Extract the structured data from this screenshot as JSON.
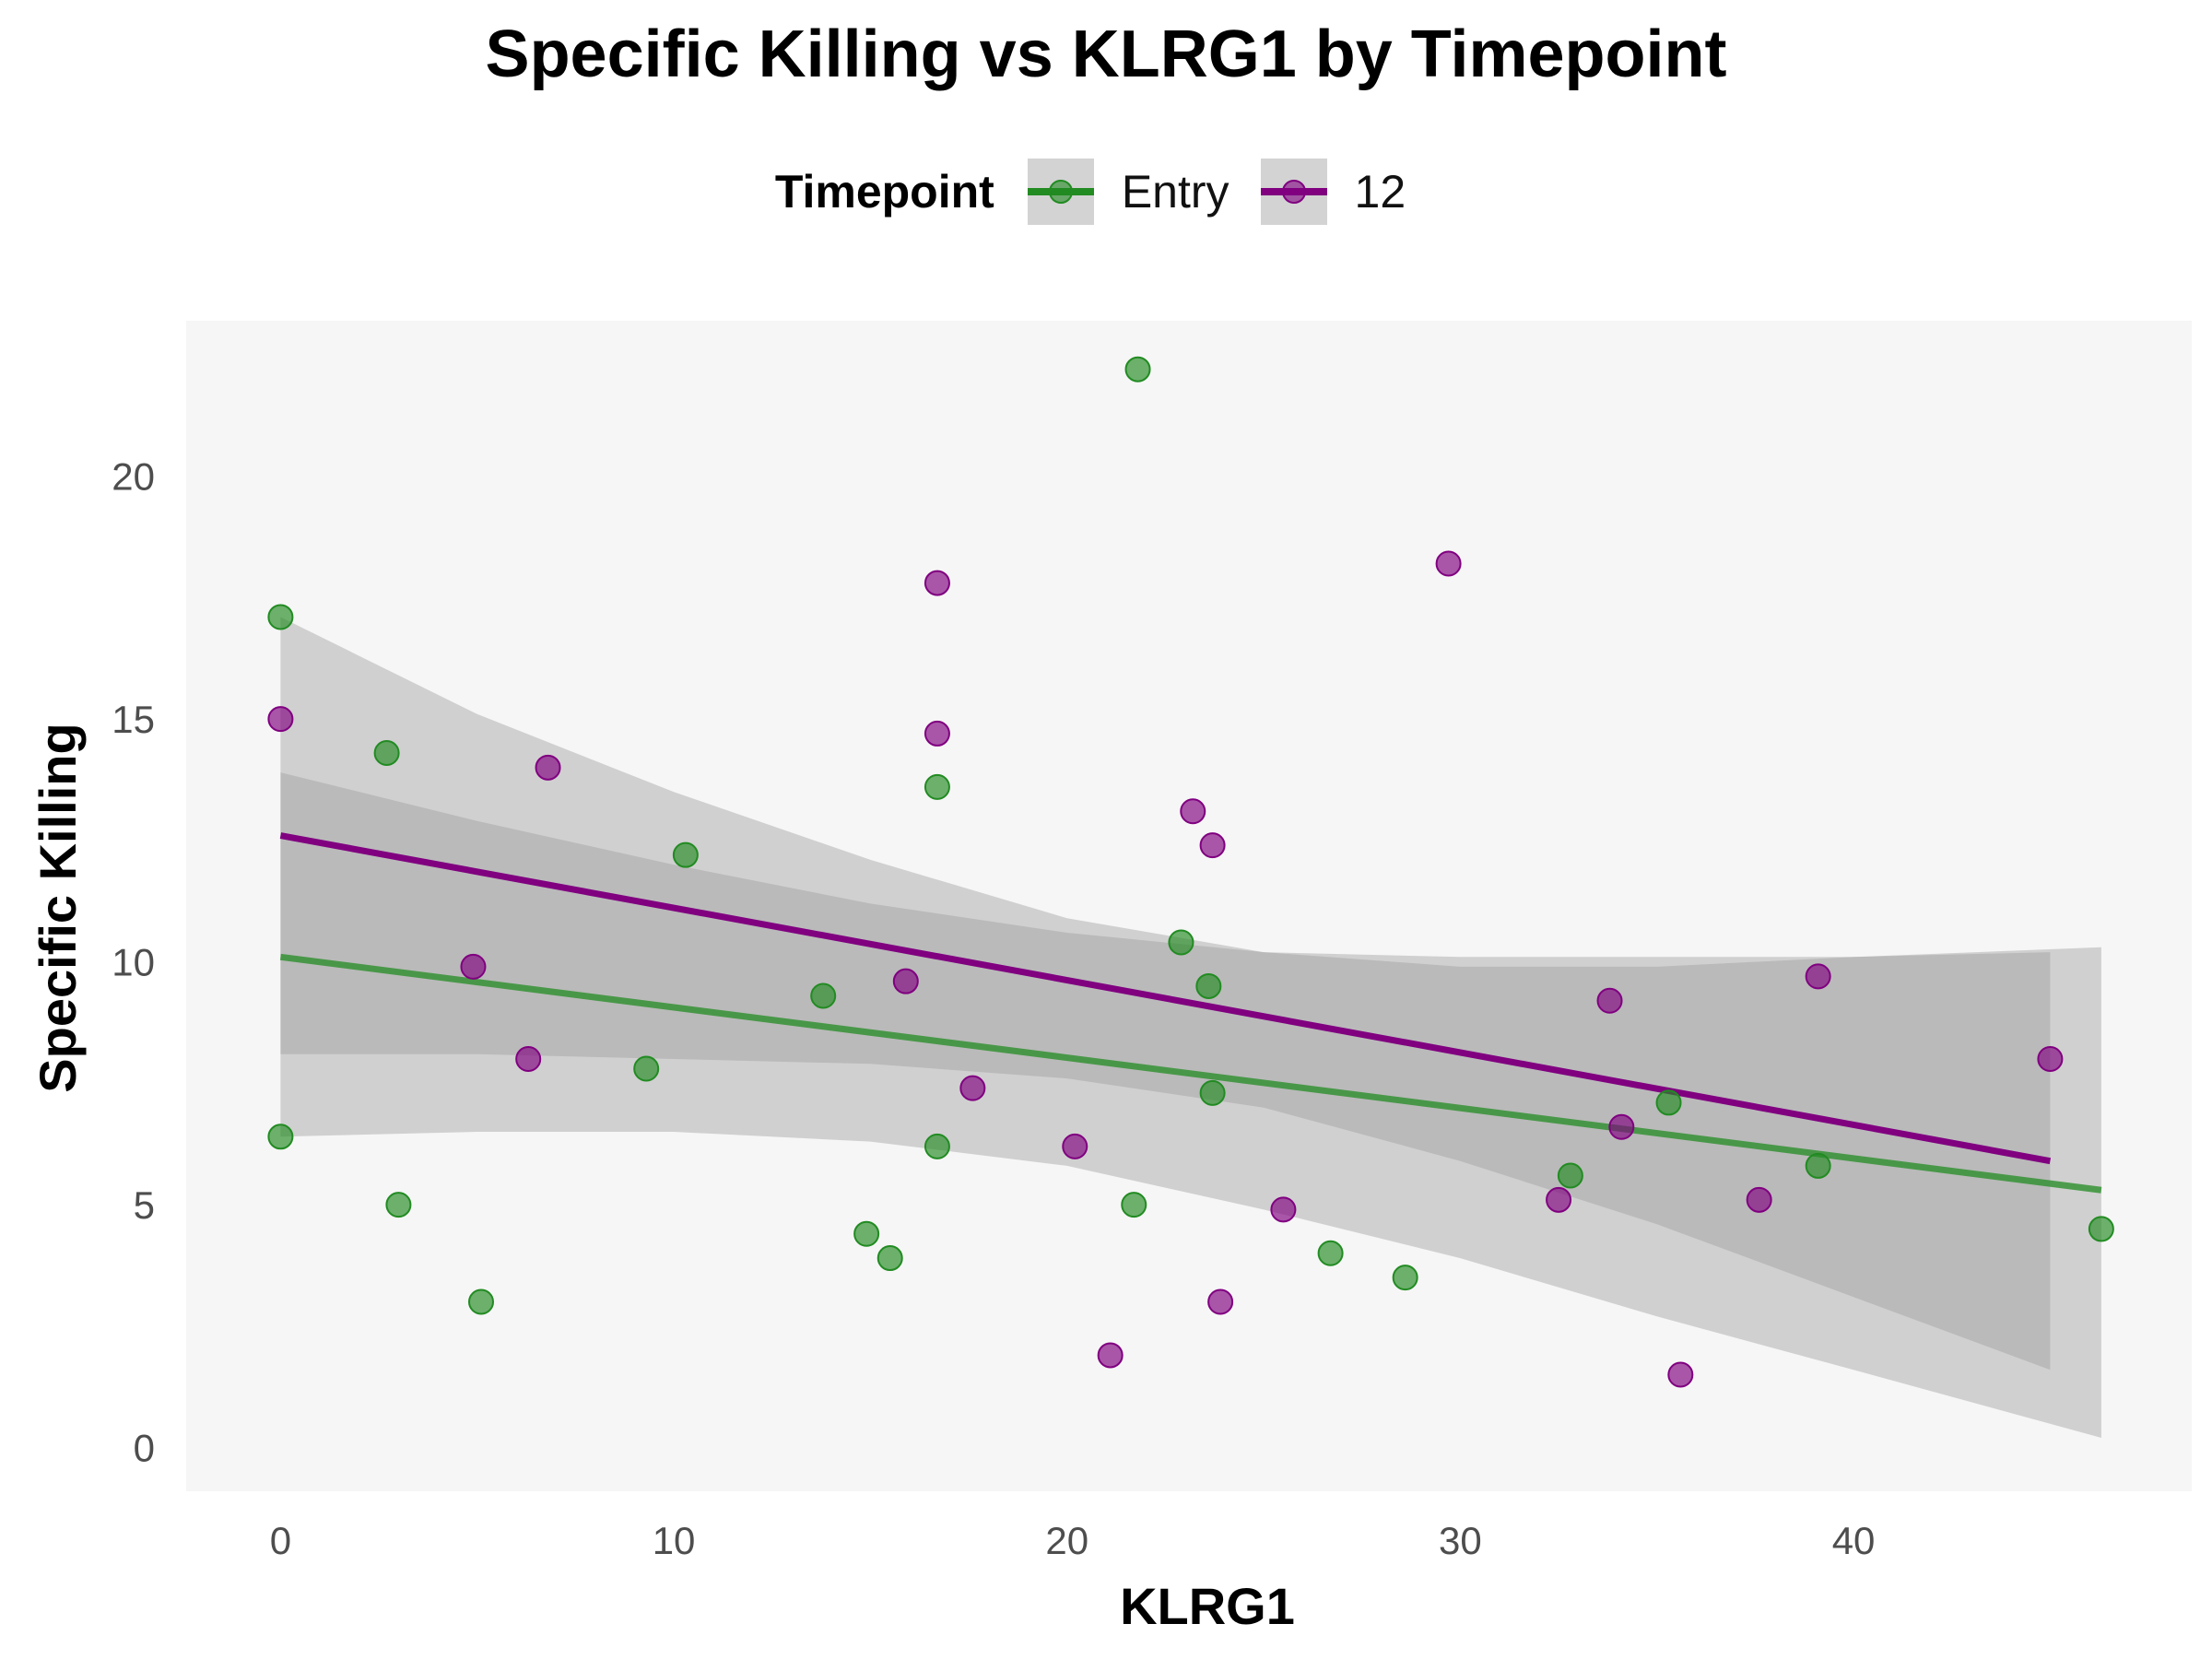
{
  "chart_data": {
    "type": "scatter",
    "title": "Specific Killing vs KLRG1 by Timepoint",
    "xlabel": "KLRG1",
    "ylabel": "Specific Killing",
    "xlim": [
      -2.4,
      48.6
    ],
    "ylim": [
      -0.9,
      23.2
    ],
    "xticks": [
      0,
      10,
      20,
      30,
      40
    ],
    "yticks": [
      0,
      5,
      10,
      15,
      20
    ],
    "legend": {
      "title": "Timepoint",
      "position": "top"
    },
    "series": [
      {
        "name": "Entry",
        "color": "#228b22",
        "points": [
          [
            0,
            17.1
          ],
          [
            0,
            6.4
          ],
          [
            2.7,
            14.3
          ],
          [
            3,
            5
          ],
          [
            5.1,
            3
          ],
          [
            9.3,
            7.8
          ],
          [
            10.3,
            12.2
          ],
          [
            13.8,
            9.3
          ],
          [
            14.9,
            4.4
          ],
          [
            15.5,
            3.9
          ],
          [
            16.7,
            13.6
          ],
          [
            16.7,
            6.2
          ],
          [
            21.8,
            22.2
          ],
          [
            21.7,
            5
          ],
          [
            22.9,
            10.4
          ],
          [
            23.6,
            9.5
          ],
          [
            23.7,
            7.3
          ],
          [
            26.7,
            4
          ],
          [
            28.6,
            3.5
          ],
          [
            32.8,
            5.6
          ],
          [
            35.3,
            7.1
          ],
          [
            39.1,
            5.8
          ],
          [
            46.3,
            4.5
          ]
        ],
        "fit": {
          "x": [
            0,
            46.3
          ],
          "y": [
            10.1,
            5.3
          ]
        },
        "ci": {
          "x": [
            0,
            5,
            10,
            15,
            20,
            25,
            30,
            35,
            40,
            46.3
          ],
          "lower": [
            6.4,
            6.5,
            6.5,
            6.3,
            5.8,
            4.9,
            3.9,
            2.7,
            1.6,
            0.2
          ],
          "upper": [
            17.1,
            15.1,
            13.5,
            12.1,
            10.9,
            10.2,
            9.9,
            9.9,
            10.1,
            10.3
          ]
        }
      },
      {
        "name": "12",
        "color": "#800080",
        "points": [
          [
            0,
            15
          ],
          [
            4.9,
            9.9
          ],
          [
            6.3,
            8
          ],
          [
            6.8,
            14
          ],
          [
            16.7,
            17.8
          ],
          [
            16.7,
            14.7
          ],
          [
            15.9,
            9.6
          ],
          [
            17.6,
            7.4
          ],
          [
            20.2,
            6.2
          ],
          [
            21.1,
            1.9
          ],
          [
            23.2,
            13.1
          ],
          [
            23.7,
            12.4
          ],
          [
            23.9,
            3
          ],
          [
            25.5,
            4.9
          ],
          [
            29.7,
            18.2
          ],
          [
            32.5,
            5.1
          ],
          [
            33.8,
            9.2
          ],
          [
            34.1,
            6.6
          ],
          [
            35.6,
            1.5
          ],
          [
            37.6,
            5.1
          ],
          [
            39.1,
            9.7
          ],
          [
            45,
            8
          ]
        ],
        "fit": {
          "x": [
            0,
            45
          ],
          "y": [
            12.6,
            5.9
          ]
        },
        "ci": {
          "x": [
            0,
            5,
            10,
            15,
            20,
            25,
            30,
            35,
            40,
            45
          ],
          "lower": [
            8.1,
            8.1,
            8.0,
            7.9,
            7.6,
            7.0,
            5.9,
            4.6,
            3.1,
            1.6
          ],
          "upper": [
            13.9,
            12.9,
            12.0,
            11.2,
            10.6,
            10.2,
            10.1,
            10.1,
            10.1,
            10.2
          ]
        }
      }
    ]
  }
}
